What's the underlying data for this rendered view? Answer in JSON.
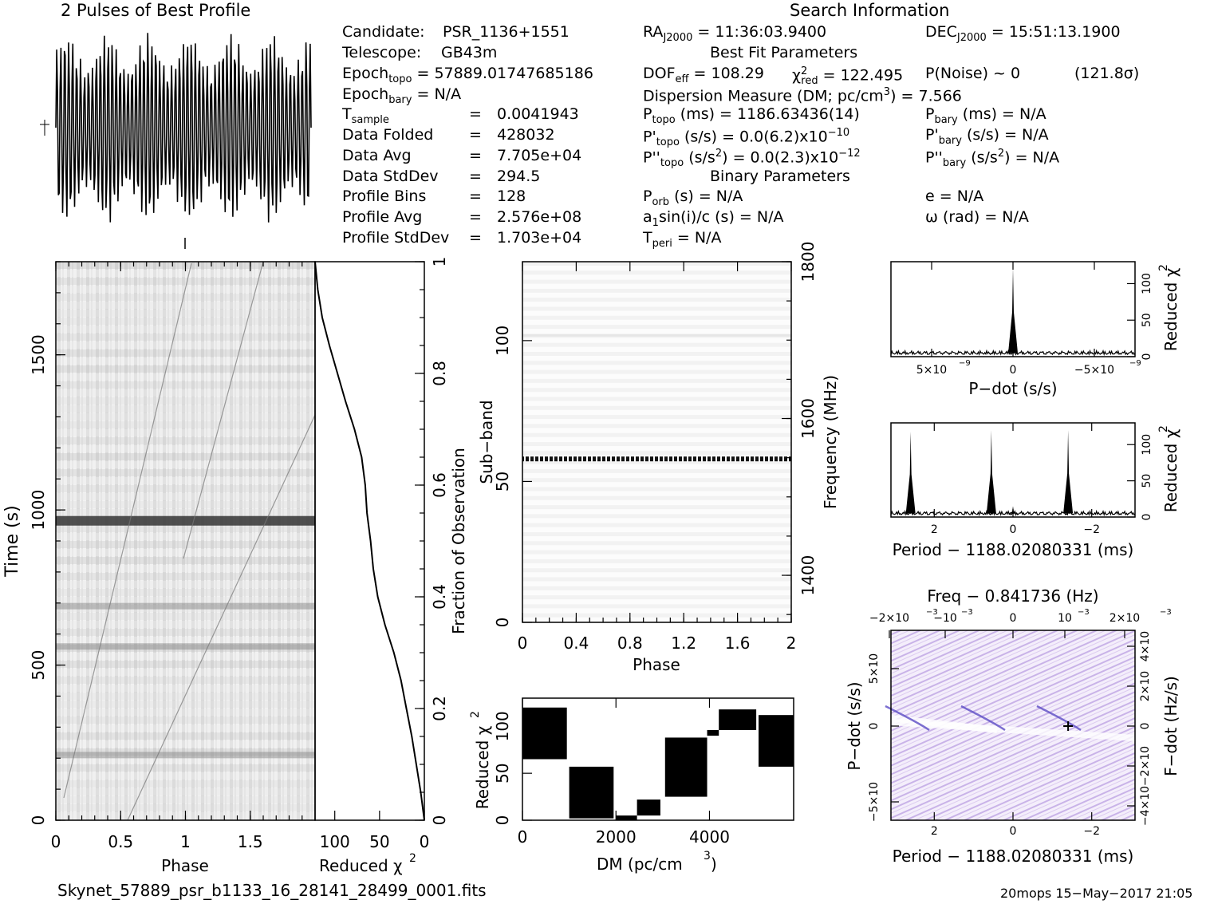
{
  "header": {
    "profile_title": "2 Pulses of Best Profile",
    "search_title": "Search Information"
  },
  "candidate": [
    {
      "label": "Candidate:",
      "value": "PSR_1136+1551"
    },
    {
      "label": "Telescope:",
      "value": "GB43m"
    },
    {
      "label": "Epoch",
      "sub": "topo",
      "value": "= 57889.01747685186"
    },
    {
      "label": "Epoch",
      "sub": "bary",
      "value": "= N/A"
    },
    {
      "label": "T",
      "sub": "sample",
      "eq": "=",
      "value": "0.0041943"
    },
    {
      "label": "Data Folded",
      "eq": "=",
      "value": "428032"
    },
    {
      "label": "Data Avg",
      "eq": "=",
      "value": "7.705e+04"
    },
    {
      "label": "Data StdDev",
      "eq": "=",
      "value": "294.5"
    },
    {
      "label": "Profile Bins",
      "eq": "=",
      "value": "128"
    },
    {
      "label": "Profile Avg",
      "eq": "=",
      "value": "2.576e+08"
    },
    {
      "label": "Profile StdDev",
      "eq": "=",
      "value": "1.703e+04"
    }
  ],
  "search_info": {
    "ra": "RA",
    "ra_sub": "J2000",
    "ra_value": "= 11:36:03.9400",
    "dec": "DEC",
    "dec_sub": "J2000",
    "dec_value": "= 15:51:13.1900",
    "best_fit_title": "Best Fit Parameters",
    "dof": "DOF",
    "dof_sub": "eff",
    "dof_value": "= 108.29",
    "chi": "χ",
    "chi_sup": "2",
    "chi_sub": "red",
    "chi_value": "= 122.495",
    "pnoise": "P(Noise) ~ 0",
    "sigma": "(121.8σ)",
    "dm_line": "Dispersion Measure (DM; pc/cm",
    "dm_sup": "3",
    "dm_value": ") = 7.566",
    "ptopo": "P",
    "ptopo_sub": "topo",
    "ptopo_value": "(ms) =  1186.63436(14)",
    "pbary": "P",
    "pbary_sub": "bary",
    "pbary_value": "(ms) = N/A",
    "pdtopo": "P'",
    "pdtopo_sub": "topo",
    "pdtopo_value": "(s/s) = 0.0(6.2)x10",
    "pdtopo_exp": "−10",
    "pdbary": "P'",
    "pdbary_sub": "bary",
    "pdbary_value": "(s/s) = N/A",
    "pddtopo": "P''",
    "pddtopo_sub": "topo",
    "pddtopo_value_a": "(s/s",
    "pddtopo_sup": "2",
    "pddtopo_value_b": ") = 0.0(2.3)x10",
    "pddtopo_exp": "−12",
    "pddbary": "P''",
    "pddbary_sub": "bary",
    "pddbary_value_a": "(s/s",
    "pddbary_sup": "2",
    "pddbary_value_b": ") = N/A",
    "binary_title": "Binary Parameters",
    "porb": "P",
    "porb_sub": "orb",
    "porb_value": "(s) = N/A",
    "ecc": "e = N/A",
    "a1": "a",
    "a1_sub": "1",
    "a1_value": "sin(i)/c (s) = N/A",
    "omega": "ω (rad) = N/A",
    "tperi": "T",
    "tperi_sub": "peri",
    "tperi_value": "= N/A"
  },
  "footer": {
    "filename": "Skynet_57889_psr_b1133_16_28141_28499_0001.fits",
    "stamp": "20mops 15−May−2017 21:05"
  },
  "chart_data": [
    {
      "id": "profile",
      "type": "line",
      "title": "2 Pulses of Best Profile",
      "xlim": [
        0,
        2
      ],
      "note_pulses": 2,
      "ylim_relative": [
        0,
        1
      ]
    },
    {
      "id": "time_phase",
      "type": "heatmap",
      "xlabel": "Phase",
      "ylabel": "Time (s)",
      "xlim": [
        0,
        2
      ],
      "ylim": [
        0,
        1800
      ],
      "xticks": [
        "0",
        "0.5",
        "1",
        "1.5"
      ],
      "yticks": [
        "0",
        "500",
        "1000",
        "1500"
      ],
      "dark_time_bands_s": [
        965,
        690,
        560,
        210
      ],
      "right_ticks": [
        "0",
        "0.2",
        "0.4",
        "0.6",
        "0.8",
        "1"
      ],
      "right_label": "Fraction of Observation"
    },
    {
      "id": "redchi_vs_time",
      "type": "line",
      "xlabel": "Reduced χ",
      "xlabel_sup": "2",
      "xticks": [
        "100",
        "50",
        "0"
      ],
      "x_reversed": true,
      "xlim": [
        122,
        0
      ],
      "fraction": [
        0.0,
        0.05,
        0.1,
        0.15,
        0.2,
        0.25,
        0.3,
        0.35,
        0.4,
        0.45,
        0.5,
        0.55,
        0.6,
        0.65,
        0.7,
        0.75,
        0.8,
        0.85,
        0.9,
        0.95,
        1.0
      ],
      "reduced_chi2": [
        0,
        4,
        9,
        14,
        20,
        26,
        34,
        44,
        52,
        57,
        60,
        64,
        66,
        70,
        78,
        88,
        97,
        106,
        114,
        119,
        122
      ]
    },
    {
      "id": "subband_phase",
      "type": "heatmap",
      "xlabel": "Phase",
      "ylabel": "Sub−band",
      "right_label": "Frequency (MHz)",
      "xlim": [
        0,
        2
      ],
      "ylim": [
        0,
        128
      ],
      "xticks": [
        "0",
        "0.4",
        "0.8",
        "1.2",
        "1.6",
        "2"
      ],
      "yticks": [
        "0",
        "50",
        "100"
      ],
      "right_ticks": [
        "1400",
        "1600",
        "1800"
      ],
      "bright_subbands": [
        58,
        102
      ]
    },
    {
      "id": "redchi_vs_dm",
      "type": "line",
      "xlabel": "DM (pc/cm",
      "xlabel_sup": "3",
      "xlabel_end": ")",
      "ylabel": "Reduced χ",
      "ylabel_sup": "2",
      "xlim": [
        0,
        5800
      ],
      "ylim": [
        0,
        130
      ],
      "xticks": [
        "0",
        "2000",
        "4000"
      ],
      "yticks": [
        "0",
        "50",
        "100"
      ],
      "segments": [
        {
          "x0": 0,
          "x1": 950,
          "low": 65,
          "high": 120
        },
        {
          "x0": 1000,
          "x1": 1950,
          "low": 2,
          "high": 57
        },
        {
          "x0": 2000,
          "x1": 2450,
          "low": 0,
          "high": 5
        },
        {
          "x0": 2450,
          "x1": 2950,
          "low": 5,
          "high": 22
        },
        {
          "x0": 3050,
          "x1": 3950,
          "low": 25,
          "high": 88
        },
        {
          "x0": 3950,
          "x1": 4200,
          "low": 90,
          "high": 96
        },
        {
          "x0": 4200,
          "x1": 5000,
          "low": 96,
          "high": 118
        },
        {
          "x0": 5050,
          "x1": 5800,
          "low": 57,
          "high": 112
        }
      ]
    },
    {
      "id": "redchi_vs_pdot",
      "type": "line",
      "xlabel": "P−dot (s/s)",
      "ylabel": "Reduced χ",
      "ylabel_sup": "2",
      "xlim": [
        7.5e-09,
        -7.5e-09
      ],
      "ylim": [
        0,
        130
      ],
      "xticks": [
        "5×10",
        "0",
        "−5×10"
      ],
      "xtick_exp": "−9",
      "yticks": [
        "0",
        "50",
        "100"
      ],
      "peaks": [
        {
          "x": 0,
          "y": 122
        }
      ]
    },
    {
      "id": "redchi_vs_period",
      "type": "line",
      "xlabel": "Period − 1188.02080331 (ms)",
      "ylabel": "Reduced χ",
      "ylabel_sup": "2",
      "xlim": [
        3.1,
        -3.1
      ],
      "ylim": [
        0,
        130
      ],
      "xticks": [
        "2",
        "0",
        "−2"
      ],
      "yticks": [
        "0",
        "50",
        "100"
      ],
      "peaks": [
        {
          "x": 2.6,
          "y": 118
        },
        {
          "x": 0.55,
          "y": 120
        },
        {
          "x": -1.4,
          "y": 120
        },
        {
          "x": 0.0,
          "y": 15
        }
      ]
    },
    {
      "id": "pdot_period_plane",
      "type": "heatmap",
      "title": "Freq − 0.841736 (Hz)",
      "xlabel": "Period − 1188.02080331 (ms)",
      "ylabel": "P−dot (s/s)",
      "right_label": "F−dot (Hz/s)",
      "xlim": [
        3.1,
        -3.1
      ],
      "xticks": [
        "2",
        "0",
        "−2"
      ],
      "top_ticks": [
        "−2×10",
        "−10",
        "0",
        "10",
        "2×10"
      ],
      "top_tick_exp": "−3",
      "yticks": [
        "5×10",
        "0",
        "−5×10"
      ],
      "ytick_exp": "−9",
      "right_ticks": [
        "−4×10",
        "−2×10",
        "0",
        "2×10",
        "4×10"
      ],
      "right_tick_exp": "−9",
      "best": {
        "period": -1.4,
        "pdot": 0
      }
    }
  ]
}
